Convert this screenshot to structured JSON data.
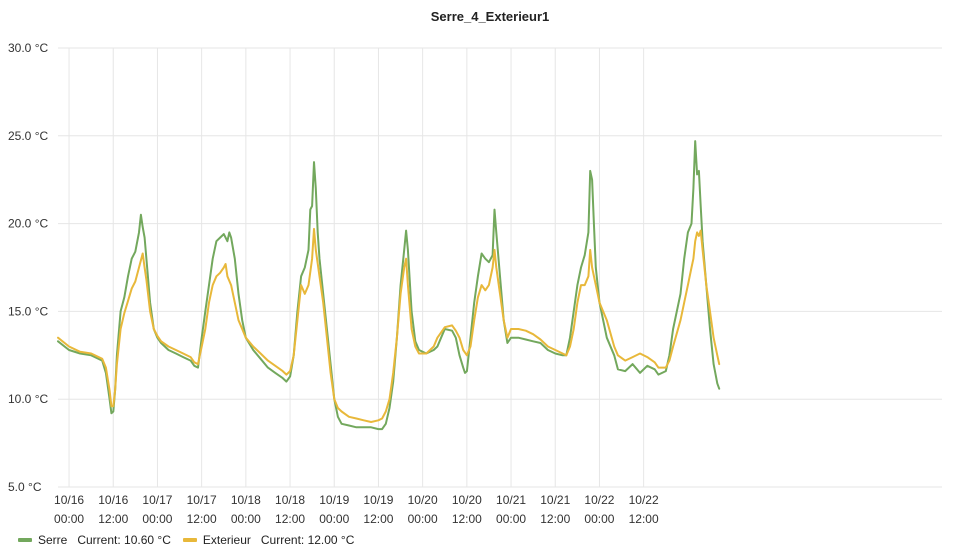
{
  "chart_data": {
    "type": "line",
    "title": "Serre_4_Exterieur1",
    "y_unit": "°C",
    "ylim": [
      5,
      30
    ],
    "y_ticks": [
      "5.0 °C",
      "10.0 °C",
      "15.0 °C",
      "20.0 °C",
      "25.0 °C",
      "30.0 °C"
    ],
    "x_range_hours": [
      -3,
      237
    ],
    "x_ticks": [
      {
        "top": "10/16",
        "bottom": "00:00"
      },
      {
        "top": "10/16",
        "bottom": "12:00"
      },
      {
        "top": "10/17",
        "bottom": "00:00"
      },
      {
        "top": "10/17",
        "bottom": "12:00"
      },
      {
        "top": "10/18",
        "bottom": "00:00"
      },
      {
        "top": "10/18",
        "bottom": "12:00"
      },
      {
        "top": "10/19",
        "bottom": "00:00"
      },
      {
        "top": "10/19",
        "bottom": "12:00"
      },
      {
        "top": "10/20",
        "bottom": "00:00"
      },
      {
        "top": "10/20",
        "bottom": "12:00"
      },
      {
        "top": "10/21",
        "bottom": "00:00"
      },
      {
        "top": "10/21",
        "bottom": "12:00"
      },
      {
        "top": "10/22",
        "bottom": "00:00"
      },
      {
        "top": "10/22",
        "bottom": "12:00"
      }
    ],
    "grid": true,
    "legend_position": "bottom-left",
    "series": [
      {
        "name": "Serre",
        "legend_label": "Serre",
        "current_label": "Current: 10.60 °C",
        "color": "#73a85d",
        "points": [
          [
            -3,
            13.3
          ],
          [
            0,
            12.8
          ],
          [
            3,
            12.6
          ],
          [
            6,
            12.5
          ],
          [
            9,
            12.2
          ],
          [
            10,
            11.5
          ],
          [
            11,
            10.0
          ],
          [
            11.5,
            9.2
          ],
          [
            12,
            9.3
          ],
          [
            12.5,
            10.5
          ],
          [
            13,
            12.5
          ],
          [
            14,
            15.0
          ],
          [
            15,
            15.8
          ],
          [
            16,
            17.0
          ],
          [
            17,
            18.0
          ],
          [
            18,
            18.4
          ],
          [
            19,
            19.5
          ],
          [
            19.5,
            20.5
          ],
          [
            20,
            19.8
          ],
          [
            20.5,
            19.2
          ],
          [
            21,
            18.0
          ],
          [
            22,
            15.5
          ],
          [
            23,
            14.0
          ],
          [
            24,
            13.5
          ],
          [
            25,
            13.2
          ],
          [
            27,
            12.8
          ],
          [
            29,
            12.6
          ],
          [
            31,
            12.4
          ],
          [
            33,
            12.2
          ],
          [
            34,
            11.9
          ],
          [
            35,
            11.8
          ],
          [
            36,
            13.5
          ],
          [
            37,
            15.0
          ],
          [
            38,
            16.5
          ],
          [
            39,
            18.0
          ],
          [
            40,
            19.0
          ],
          [
            41,
            19.2
          ],
          [
            42,
            19.4
          ],
          [
            43,
            19.0
          ],
          [
            43.5,
            19.5
          ],
          [
            44,
            19.2
          ],
          [
            45,
            18.0
          ],
          [
            46,
            16.0
          ],
          [
            47,
            14.5
          ],
          [
            48,
            13.5
          ],
          [
            50,
            12.8
          ],
          [
            52,
            12.3
          ],
          [
            54,
            11.8
          ],
          [
            56,
            11.5
          ],
          [
            58,
            11.2
          ],
          [
            59,
            11.0
          ],
          [
            60,
            11.3
          ],
          [
            61,
            12.5
          ],
          [
            62,
            15.0
          ],
          [
            63,
            17.0
          ],
          [
            64,
            17.5
          ],
          [
            65,
            18.5
          ],
          [
            65.5,
            20.8
          ],
          [
            66,
            21.0
          ],
          [
            66.5,
            23.5
          ],
          [
            67,
            22.0
          ],
          [
            67.5,
            19.5
          ],
          [
            68,
            18.0
          ],
          [
            69,
            16.0
          ],
          [
            70,
            14.0
          ],
          [
            71,
            12.0
          ],
          [
            72,
            10.0
          ],
          [
            73,
            9.0
          ],
          [
            74,
            8.6
          ],
          [
            76,
            8.5
          ],
          [
            78,
            8.4
          ],
          [
            80,
            8.4
          ],
          [
            82,
            8.4
          ],
          [
            84,
            8.3
          ],
          [
            85,
            8.3
          ],
          [
            86,
            8.6
          ],
          [
            87,
            9.5
          ],
          [
            88,
            11.0
          ],
          [
            89,
            13.5
          ],
          [
            90,
            16.5
          ],
          [
            91,
            18.5
          ],
          [
            91.5,
            19.6
          ],
          [
            92,
            18.5
          ],
          [
            93,
            15.0
          ],
          [
            94,
            13.3
          ],
          [
            95,
            12.8
          ],
          [
            97,
            12.6
          ],
          [
            99,
            12.8
          ],
          [
            100,
            13.0
          ],
          [
            101,
            13.5
          ],
          [
            102,
            14.0
          ],
          [
            104,
            13.9
          ],
          [
            105,
            13.5
          ],
          [
            106,
            12.5
          ],
          [
            107,
            11.8
          ],
          [
            107.5,
            11.5
          ],
          [
            108,
            11.6
          ],
          [
            109,
            13.5
          ],
          [
            110,
            15.5
          ],
          [
            111,
            17.0
          ],
          [
            112,
            18.3
          ],
          [
            113,
            18.0
          ],
          [
            114,
            17.8
          ],
          [
            115,
            18.2
          ],
          [
            115.5,
            20.8
          ],
          [
            116,
            19.5
          ],
          [
            117,
            17.0
          ],
          [
            118,
            14.5
          ],
          [
            119,
            13.2
          ],
          [
            120,
            13.5
          ],
          [
            122,
            13.5
          ],
          [
            124,
            13.4
          ],
          [
            126,
            13.3
          ],
          [
            128,
            13.2
          ],
          [
            130,
            12.8
          ],
          [
            132,
            12.6
          ],
          [
            134,
            12.5
          ],
          [
            135,
            12.5
          ],
          [
            136,
            13.5
          ],
          [
            137,
            15.0
          ],
          [
            138,
            16.5
          ],
          [
            139,
            17.5
          ],
          [
            140,
            18.2
          ],
          [
            141,
            19.5
          ],
          [
            141.5,
            23.0
          ],
          [
            142,
            22.5
          ],
          [
            142.5,
            20.0
          ],
          [
            143,
            17.5
          ],
          [
            144,
            15.5
          ],
          [
            146,
            13.5
          ],
          [
            148,
            12.5
          ],
          [
            149,
            11.7
          ],
          [
            151,
            11.6
          ],
          [
            153,
            12.0
          ],
          [
            155,
            11.5
          ],
          [
            157,
            11.9
          ],
          [
            159,
            11.7
          ],
          [
            160,
            11.4
          ],
          [
            162,
            11.6
          ],
          [
            163,
            12.5
          ],
          [
            164,
            14.0
          ],
          [
            166,
            16.0
          ],
          [
            167,
            18.0
          ],
          [
            168,
            19.5
          ],
          [
            169,
            20.0
          ],
          [
            169.5,
            22.0
          ],
          [
            170,
            24.7
          ],
          [
            170.5,
            22.8
          ],
          [
            171,
            23.0
          ],
          [
            171.5,
            21.0
          ],
          [
            172,
            19.0
          ],
          [
            173,
            16.5
          ],
          [
            174,
            14.0
          ],
          [
            175,
            12.0
          ],
          [
            176,
            10.9
          ],
          [
            176.5,
            10.6
          ]
        ]
      },
      {
        "name": "Exterieur",
        "legend_label": "Exterieur",
        "current_label": "Current: 12.00 °C",
        "color": "#e8b83a",
        "points": [
          [
            -3,
            13.5
          ],
          [
            0,
            13.0
          ],
          [
            3,
            12.7
          ],
          [
            6,
            12.6
          ],
          [
            9,
            12.3
          ],
          [
            10,
            11.8
          ],
          [
            11,
            10.5
          ],
          [
            11.5,
            9.6
          ],
          [
            12,
            9.6
          ],
          [
            12.5,
            10.5
          ],
          [
            13,
            12.0
          ],
          [
            14,
            14.0
          ],
          [
            15,
            14.9
          ],
          [
            16,
            15.6
          ],
          [
            17,
            16.3
          ],
          [
            18,
            16.7
          ],
          [
            19,
            17.5
          ],
          [
            20,
            18.3
          ],
          [
            20.5,
            17.5
          ],
          [
            21,
            16.8
          ],
          [
            22,
            15.0
          ],
          [
            23,
            14.0
          ],
          [
            24,
            13.6
          ],
          [
            25,
            13.3
          ],
          [
            27,
            13.0
          ],
          [
            29,
            12.8
          ],
          [
            31,
            12.6
          ],
          [
            33,
            12.4
          ],
          [
            34,
            12.1
          ],
          [
            35,
            12.0
          ],
          [
            36,
            13.0
          ],
          [
            37,
            14.0
          ],
          [
            38,
            15.5
          ],
          [
            39,
            16.5
          ],
          [
            40,
            17.0
          ],
          [
            41,
            17.2
          ],
          [
            42,
            17.5
          ],
          [
            42.5,
            17.7
          ],
          [
            43,
            17.0
          ],
          [
            44,
            16.5
          ],
          [
            45,
            15.5
          ],
          [
            46,
            14.5
          ],
          [
            47,
            14.0
          ],
          [
            48,
            13.5
          ],
          [
            50,
            13.0
          ],
          [
            52,
            12.6
          ],
          [
            54,
            12.2
          ],
          [
            56,
            11.9
          ],
          [
            58,
            11.6
          ],
          [
            59,
            11.4
          ],
          [
            60,
            11.6
          ],
          [
            61,
            12.5
          ],
          [
            62,
            14.5
          ],
          [
            63,
            16.5
          ],
          [
            64,
            16.0
          ],
          [
            65,
            16.5
          ],
          [
            66,
            18.0
          ],
          [
            66.5,
            19.7
          ],
          [
            67,
            18.5
          ],
          [
            68,
            17.0
          ],
          [
            69,
            15.5
          ],
          [
            70,
            13.5
          ],
          [
            71,
            11.5
          ],
          [
            72,
            10.0
          ],
          [
            73,
            9.5
          ],
          [
            74,
            9.3
          ],
          [
            76,
            9.0
          ],
          [
            78,
            8.9
          ],
          [
            80,
            8.8
          ],
          [
            82,
            8.7
          ],
          [
            84,
            8.8
          ],
          [
            85,
            8.9
          ],
          [
            86,
            9.3
          ],
          [
            87,
            10.0
          ],
          [
            88,
            11.5
          ],
          [
            89,
            13.5
          ],
          [
            90,
            16.0
          ],
          [
            91,
            17.5
          ],
          [
            91.5,
            18.0
          ],
          [
            92,
            16.5
          ],
          [
            93,
            14.0
          ],
          [
            94,
            13.0
          ],
          [
            95,
            12.6
          ],
          [
            97,
            12.6
          ],
          [
            99,
            13.0
          ],
          [
            100,
            13.5
          ],
          [
            101,
            13.8
          ],
          [
            102,
            14.1
          ],
          [
            104,
            14.2
          ],
          [
            105,
            13.9
          ],
          [
            106,
            13.5
          ],
          [
            107,
            12.8
          ],
          [
            108,
            12.5
          ],
          [
            109,
            13.0
          ],
          [
            110,
            14.5
          ],
          [
            111,
            15.8
          ],
          [
            112,
            16.5
          ],
          [
            113,
            16.2
          ],
          [
            114,
            16.5
          ],
          [
            115,
            17.5
          ],
          [
            115.5,
            18.5
          ],
          [
            116,
            17.5
          ],
          [
            117,
            16.0
          ],
          [
            118,
            14.5
          ],
          [
            119,
            13.5
          ],
          [
            120,
            14.0
          ],
          [
            122,
            14.0
          ],
          [
            124,
            13.9
          ],
          [
            126,
            13.7
          ],
          [
            128,
            13.4
          ],
          [
            130,
            13.0
          ],
          [
            132,
            12.8
          ],
          [
            134,
            12.6
          ],
          [
            135,
            12.5
          ],
          [
            136,
            13.0
          ],
          [
            137,
            14.0
          ],
          [
            138,
            15.5
          ],
          [
            139,
            16.5
          ],
          [
            140,
            16.5
          ],
          [
            141,
            17.0
          ],
          [
            141.5,
            18.5
          ],
          [
            142,
            17.5
          ],
          [
            143,
            16.5
          ],
          [
            144,
            15.5
          ],
          [
            146,
            14.5
          ],
          [
            148,
            13.0
          ],
          [
            149,
            12.5
          ],
          [
            151,
            12.2
          ],
          [
            153,
            12.4
          ],
          [
            155,
            12.6
          ],
          [
            157,
            12.4
          ],
          [
            159,
            12.1
          ],
          [
            160,
            11.8
          ],
          [
            162,
            11.8
          ],
          [
            163,
            12.2
          ],
          [
            164,
            13.0
          ],
          [
            166,
            14.5
          ],
          [
            167,
            15.5
          ],
          [
            168,
            16.5
          ],
          [
            169,
            17.5
          ],
          [
            169.5,
            18.0
          ],
          [
            170,
            19.0
          ],
          [
            170.5,
            19.5
          ],
          [
            171,
            19.3
          ],
          [
            171.5,
            19.6
          ],
          [
            172,
            18.5
          ],
          [
            173,
            16.5
          ],
          [
            174,
            15.0
          ],
          [
            175,
            13.5
          ],
          [
            176,
            12.5
          ],
          [
            176.5,
            12.0
          ]
        ]
      }
    ]
  }
}
